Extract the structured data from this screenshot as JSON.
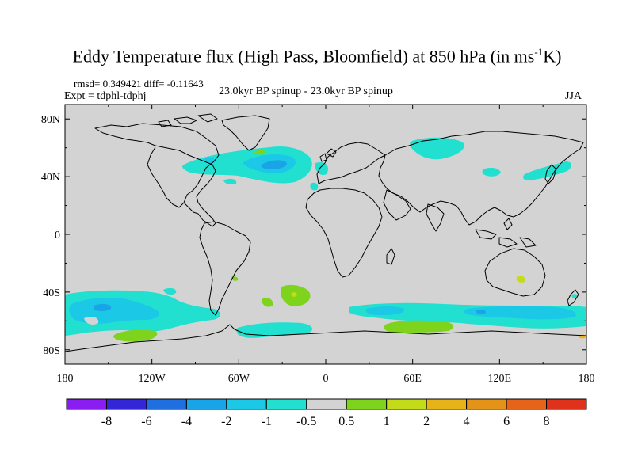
{
  "figure": {
    "title_main": "Eddy Temperature flux (High Pass, Bloomfield) at 850 hPa (in ms",
    "title_sup": "-1",
    "title_end": "K)",
    "rmsd_line": "rmsd= 0.349421 diff= -0.11643",
    "expt_line": "Expt = tdphl-tdphj",
    "center_line": "23.0kyr BP spinup - 23.0kyr BP spinup",
    "season": "JJA"
  },
  "axes": {
    "lat_labels": [
      "80N",
      "40N",
      "0",
      "40S",
      "80S"
    ],
    "lat_values": [
      80,
      40,
      0,
      -40,
      -80
    ],
    "lon_labels": [
      "180",
      "120W",
      "60W",
      "0",
      "60E",
      "120E",
      "180"
    ],
    "lon_values": [
      -180,
      -120,
      -60,
      0,
      60,
      120,
      180
    ],
    "lat_range": [
      -90,
      90
    ],
    "lon_range": [
      -180,
      180
    ]
  },
  "colorbar": {
    "colors": [
      "#8a1ef2",
      "#3226d6",
      "#1f6fe0",
      "#1aa4e8",
      "#1bc8e6",
      "#22e0d0",
      "#d3d3d3",
      "#7ed31c",
      "#c4dc18",
      "#e6b419",
      "#e39418",
      "#e5641a",
      "#e0321a"
    ],
    "labels": [
      "-8",
      "-6",
      "-4",
      "-2",
      "-1",
      "-0.5",
      "0.5",
      "1",
      "2",
      "4",
      "6",
      "8"
    ]
  },
  "colors": {
    "background_field": "#d3d3d3",
    "coast": "#000000"
  }
}
